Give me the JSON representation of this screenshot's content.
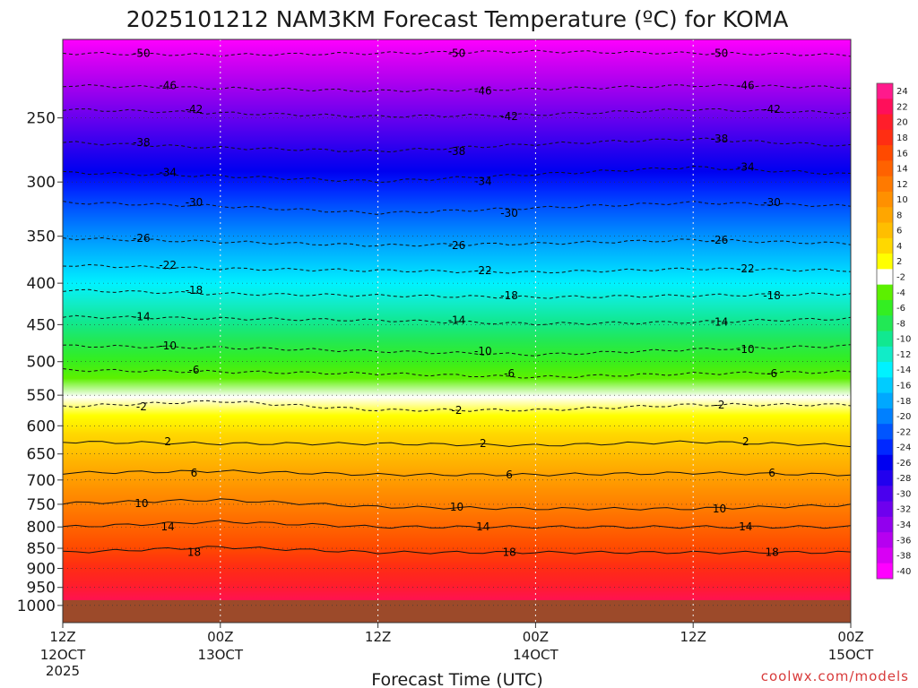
{
  "chart_data": {
    "type": "heatmap",
    "title": "2025101212 NAM3KM Forecast Temperature (ºC) for KOMA",
    "xlabel": "Forecast Time (UTC)",
    "ylabel": "",
    "credit": "coolwx.com/models",
    "x_ticks": [
      {
        "hour": 0,
        "line1": "12Z",
        "line2": "12OCT",
        "line3": "2025"
      },
      {
        "hour": 12,
        "line1": "00Z",
        "line2": "13OCT",
        "line3": ""
      },
      {
        "hour": 24,
        "line1": "12Z",
        "line2": "",
        "line3": ""
      },
      {
        "hour": 36,
        "line1": "00Z",
        "line2": "14OCT",
        "line3": ""
      },
      {
        "hour": 48,
        "line1": "12Z",
        "line2": "",
        "line3": ""
      },
      {
        "hour": 60,
        "line1": "00Z",
        "line2": "15OCT",
        "line3": ""
      }
    ],
    "x_range_hours": [
      0,
      60
    ],
    "y_axis": "pressure (hPa), log scale, inverted",
    "y_range": [
      200,
      1050
    ],
    "y_ticks": [
      250,
      300,
      350,
      400,
      450,
      500,
      550,
      600,
      650,
      700,
      750,
      800,
      850,
      900,
      950,
      1000
    ],
    "colorbar_levels": [
      24,
      22,
      20,
      18,
      16,
      14,
      12,
      10,
      8,
      6,
      4,
      2,
      -2,
      -4,
      -6,
      -8,
      -10,
      -12,
      -14,
      -16,
      -18,
      -20,
      -22,
      -24,
      -26,
      -28,
      -30,
      -32,
      -34,
      -36,
      -38,
      -40
    ],
    "colorbar_colors": [
      "#ff1a8c",
      "#ff0f5a",
      "#ff1e2a",
      "#ff2e12",
      "#ff4a00",
      "#ff6200",
      "#ff7a00",
      "#ff9000",
      "#ffa600",
      "#ffbe00",
      "#ffd800",
      "#ffff00",
      "#ffffff",
      "#5cf000",
      "#33ee22",
      "#22e855",
      "#11e890",
      "#11ecc8",
      "#00f2ff",
      "#00ccff",
      "#00a8ff",
      "#0080ff",
      "#0055ff",
      "#0028ff",
      "#0000f0",
      "#2200ee",
      "#4a00ee",
      "#6e00ee",
      "#9200ee",
      "#b600f0",
      "#d800f4",
      "#ff00ff"
    ],
    "surface_color": "#9c4a2a",
    "contours": [
      {
        "label": "-50",
        "pressure": 208,
        "tilt": [
          0,
          2,
          0,
          -2,
          0,
          2
        ]
      },
      {
        "label": "-46",
        "pressure": 228,
        "tilt": [
          0,
          3,
          6,
          4,
          0,
          2
        ]
      },
      {
        "label": "-42",
        "pressure": 244,
        "tilt": [
          0,
          4,
          8,
          6,
          0,
          4
        ]
      },
      {
        "label": "-38",
        "pressure": 268,
        "tilt": [
          0,
          6,
          10,
          2,
          -4,
          4
        ]
      },
      {
        "label": "-34",
        "pressure": 292,
        "tilt": [
          0,
          4,
          10,
          2,
          -6,
          2
        ]
      },
      {
        "label": "-30",
        "pressure": 318,
        "tilt": [
          0,
          4,
          12,
          6,
          0,
          4
        ]
      },
      {
        "label": "-26",
        "pressure": 352,
        "tilt": [
          0,
          4,
          8,
          6,
          2,
          6
        ]
      },
      {
        "label": "-22",
        "pressure": 380,
        "tilt": [
          0,
          4,
          6,
          8,
          4,
          6
        ]
      },
      {
        "label": "-18",
        "pressure": 408,
        "tilt": [
          0,
          4,
          6,
          8,
          6,
          4
        ]
      },
      {
        "label": "-14",
        "pressure": 440,
        "tilt": [
          0,
          2,
          4,
          8,
          6,
          2
        ]
      },
      {
        "label": "-10",
        "pressure": 478,
        "tilt": [
          0,
          2,
          6,
          10,
          4,
          0
        ]
      },
      {
        "label": "-6",
        "pressure": 512,
        "tilt": [
          0,
          2,
          4,
          8,
          4,
          2
        ]
      },
      {
        "label": "-2",
        "pressure": 568,
        "tilt": [
          0,
          -6,
          4,
          4,
          -2,
          -2
        ]
      },
      {
        "label": "2",
        "pressure": 628,
        "tilt": [
          0,
          2,
          2,
          4,
          0,
          4
        ]
      },
      {
        "label": "6",
        "pressure": 686,
        "tilt": [
          0,
          -2,
          2,
          2,
          0,
          2
        ]
      },
      {
        "label": "10",
        "pressure": 748,
        "tilt": [
          0,
          -4,
          4,
          6,
          6,
          2
        ]
      },
      {
        "label": "14",
        "pressure": 800,
        "tilt": [
          0,
          -6,
          0,
          0,
          0,
          0
        ]
      },
      {
        "label": "18",
        "pressure": 860,
        "tilt": [
          0,
          -6,
          0,
          0,
          0,
          0
        ]
      }
    ]
  }
}
